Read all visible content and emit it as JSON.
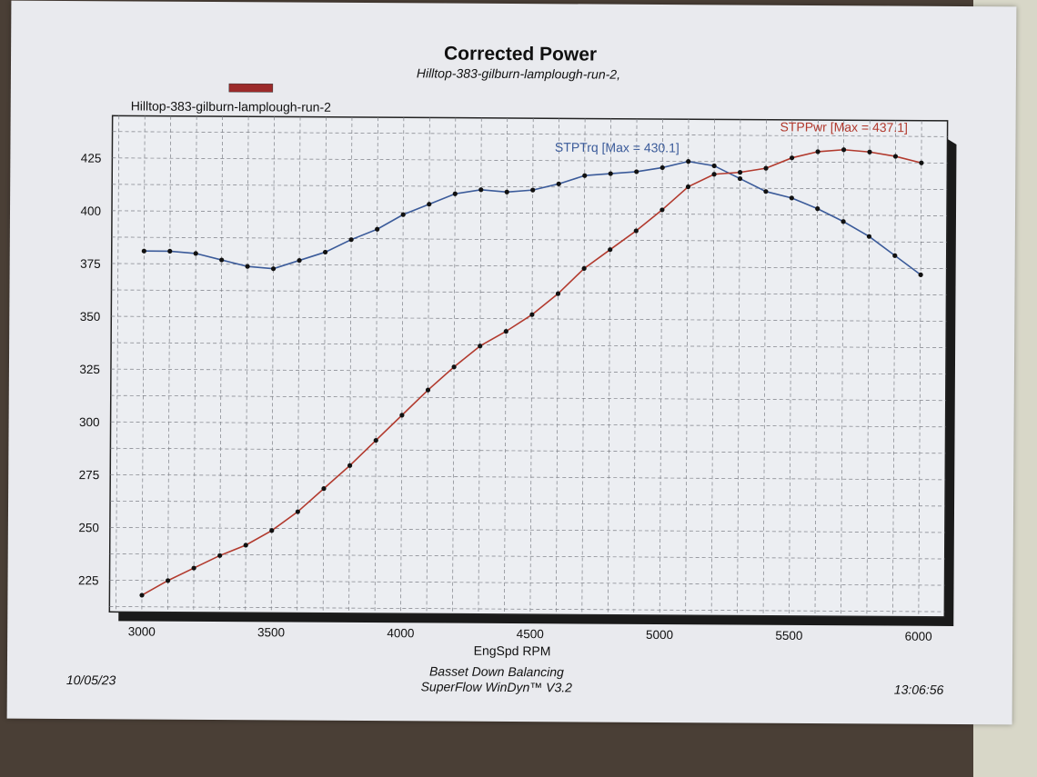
{
  "header": {
    "title": "Corrected Power",
    "subtitle": "Hilltop-383-gilburn-lamplough-run-2,"
  },
  "footer": {
    "date": "10/05/23",
    "line1": "Basset Down Balancing",
    "line2": "SuperFlow WinDyn™ V3.2",
    "time": "13:06:56"
  },
  "colors": {
    "torque": "#3b5b9a",
    "power": "#b23a2e",
    "legend_swatch": "#9c2a2a"
  },
  "chart_data": {
    "type": "line",
    "legend": [
      "Hilltop-383-gilburn-lamplough-run-2"
    ],
    "xlabel": "EngSpd RPM",
    "ylabel": "",
    "x_ticks": [
      3000,
      3500,
      4000,
      4500,
      5000,
      5500,
      6000
    ],
    "y_ticks": [
      225,
      250,
      275,
      300,
      325,
      350,
      375,
      400,
      425
    ],
    "xlim": [
      2875,
      6100
    ],
    "ylim": [
      210,
      445
    ],
    "grid": true,
    "x": [
      3000,
      3100,
      3200,
      3300,
      3400,
      3500,
      3600,
      3700,
      3800,
      3900,
      4000,
      4100,
      4200,
      4300,
      4400,
      4500,
      4600,
      4700,
      4800,
      4900,
      5000,
      5100,
      5200,
      5300,
      5400,
      5500,
      5600,
      5700,
      5800,
      5900,
      6000
    ],
    "series": [
      {
        "name": "STPTrq",
        "annotation": "STPTrq [Max = 430.1]",
        "values": [
          381,
          381,
          380,
          377,
          374,
          373,
          377,
          381,
          387,
          392,
          399,
          404,
          409,
          411,
          410,
          411,
          414,
          418,
          419,
          420,
          422,
          425,
          423,
          417,
          411,
          408,
          403,
          397,
          390,
          381,
          372
        ]
      },
      {
        "name": "STPPwr",
        "annotation": "STPPwr [Max = 437.1]",
        "values": [
          218,
          225,
          231,
          237,
          242,
          249,
          258,
          269,
          280,
          292,
          304,
          316,
          327,
          337,
          344,
          352,
          362,
          374,
          383,
          392,
          402,
          413,
          419,
          420,
          422,
          427,
          430,
          431,
          430,
          428,
          425
        ]
      }
    ]
  }
}
